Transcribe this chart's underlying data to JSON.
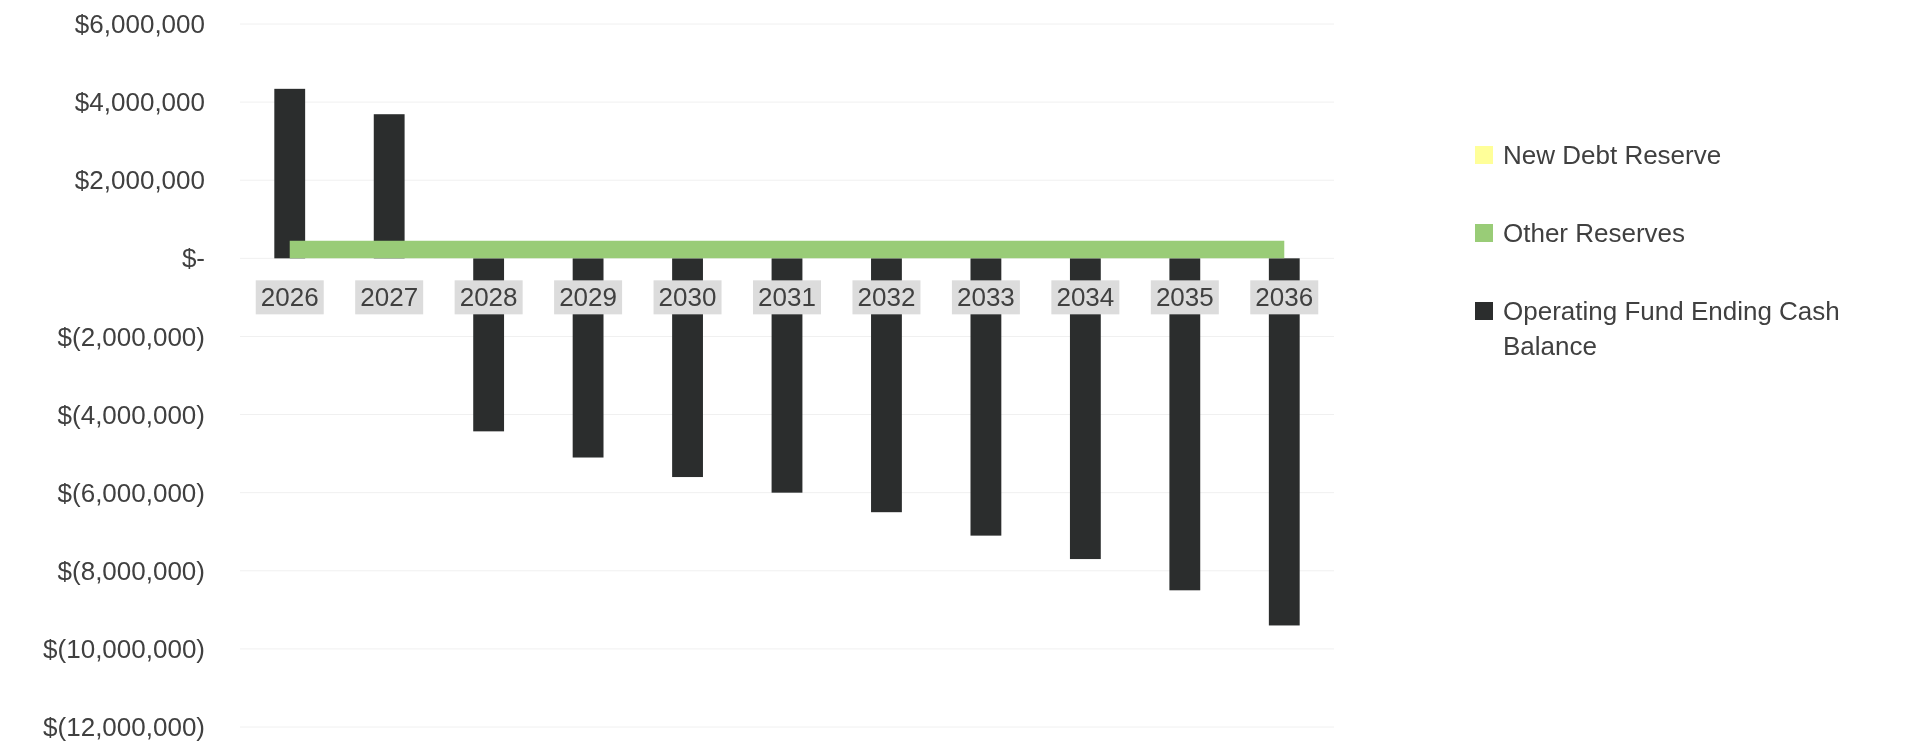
{
  "chart_data": {
    "type": "bar",
    "categories": [
      "2026",
      "2027",
      "2028",
      "2029",
      "2030",
      "2031",
      "2032",
      "2033",
      "2034",
      "2035",
      "2036"
    ],
    "series": [
      {
        "name": "New Debt Reserve",
        "type": "area",
        "color": "#ffff99",
        "values": [
          null,
          null,
          null,
          null,
          null,
          null,
          null,
          null,
          null,
          null,
          null
        ]
      },
      {
        "name": "Other Reserves",
        "type": "area",
        "color": "#99cc77",
        "values": [
          450000,
          450000,
          450000,
          450000,
          450000,
          450000,
          450000,
          450000,
          450000,
          450000,
          450000
        ]
      },
      {
        "name": "Operating Fund Ending Cash Balance",
        "color": "#2b2d2d",
        "values": [
          4340000,
          3690000,
          -4430000,
          -5100000,
          -5600000,
          -6000000,
          -6500000,
          -7100000,
          -7700000,
          -8500000,
          -9400000
        ]
      }
    ],
    "ylim": [
      -12000000,
      6000000
    ],
    "yticks": [
      {
        "value": 6000000,
        "label": "$6,000,000"
      },
      {
        "value": 4000000,
        "label": "$4,000,000"
      },
      {
        "value": 2000000,
        "label": "$2,000,000"
      },
      {
        "value": 0,
        "label": "$-"
      },
      {
        "value": -2000000,
        "label": "$(2,000,000)"
      },
      {
        "value": -4000000,
        "label": "$(4,000,000)"
      },
      {
        "value": -6000000,
        "label": "$(6,000,000)"
      },
      {
        "value": -8000000,
        "label": "$(8,000,000)"
      },
      {
        "value": -10000000,
        "label": "$(10,000,000)"
      },
      {
        "value": -12000000,
        "label": "$(12,000,000)"
      }
    ],
    "grid": "y",
    "legend": "right"
  }
}
